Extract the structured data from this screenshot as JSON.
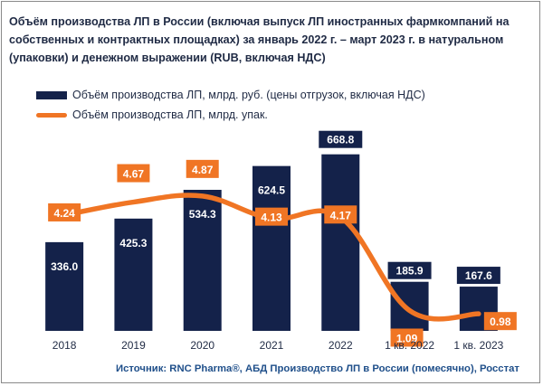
{
  "title": "Объём производства ЛП в России (включая выпуск ЛП иностранных фармкомпаний на собственных и контрактных площадках) за январь 2022 г. – март 2023 г. в натуральном (упаковки) и денежном выражении (RUB, включая НДС)",
  "source": "Источник: RNC Pharma®, АБД Производство ЛП в России (помесячно), Росстат",
  "colors": {
    "bar": "#14224a",
    "line": "#f07524",
    "text": "#1f2a44",
    "source": "#1f4f8a"
  },
  "chart_data": {
    "type": "bar",
    "categories": [
      "2018",
      "2019",
      "2020",
      "2021",
      "2022",
      "1 кв. 2022",
      "1 кв. 2023"
    ],
    "series": [
      {
        "name": "Объём производства ЛП, млрд. руб. (цены отгрузок, включая НДС)",
        "type": "bar",
        "values": [
          336.0,
          425.3,
          534.3,
          624.5,
          668.8,
          185.9,
          167.6
        ],
        "labels": [
          "336.0",
          "425.3",
          "534.3",
          "624.5",
          "668.8",
          "185.9",
          "167.6"
        ]
      },
      {
        "name": "Объём производства ЛП, млрд. упак.",
        "type": "line",
        "values": [
          4.24,
          4.67,
          4.87,
          4.13,
          4.17,
          1.09,
          0.98
        ],
        "labels": [
          "4.24",
          "4.67",
          "4.87",
          "4.13",
          "4.17",
          "1.09",
          "0.98"
        ]
      }
    ],
    "legend_position": "top-left",
    "grid": false
  }
}
